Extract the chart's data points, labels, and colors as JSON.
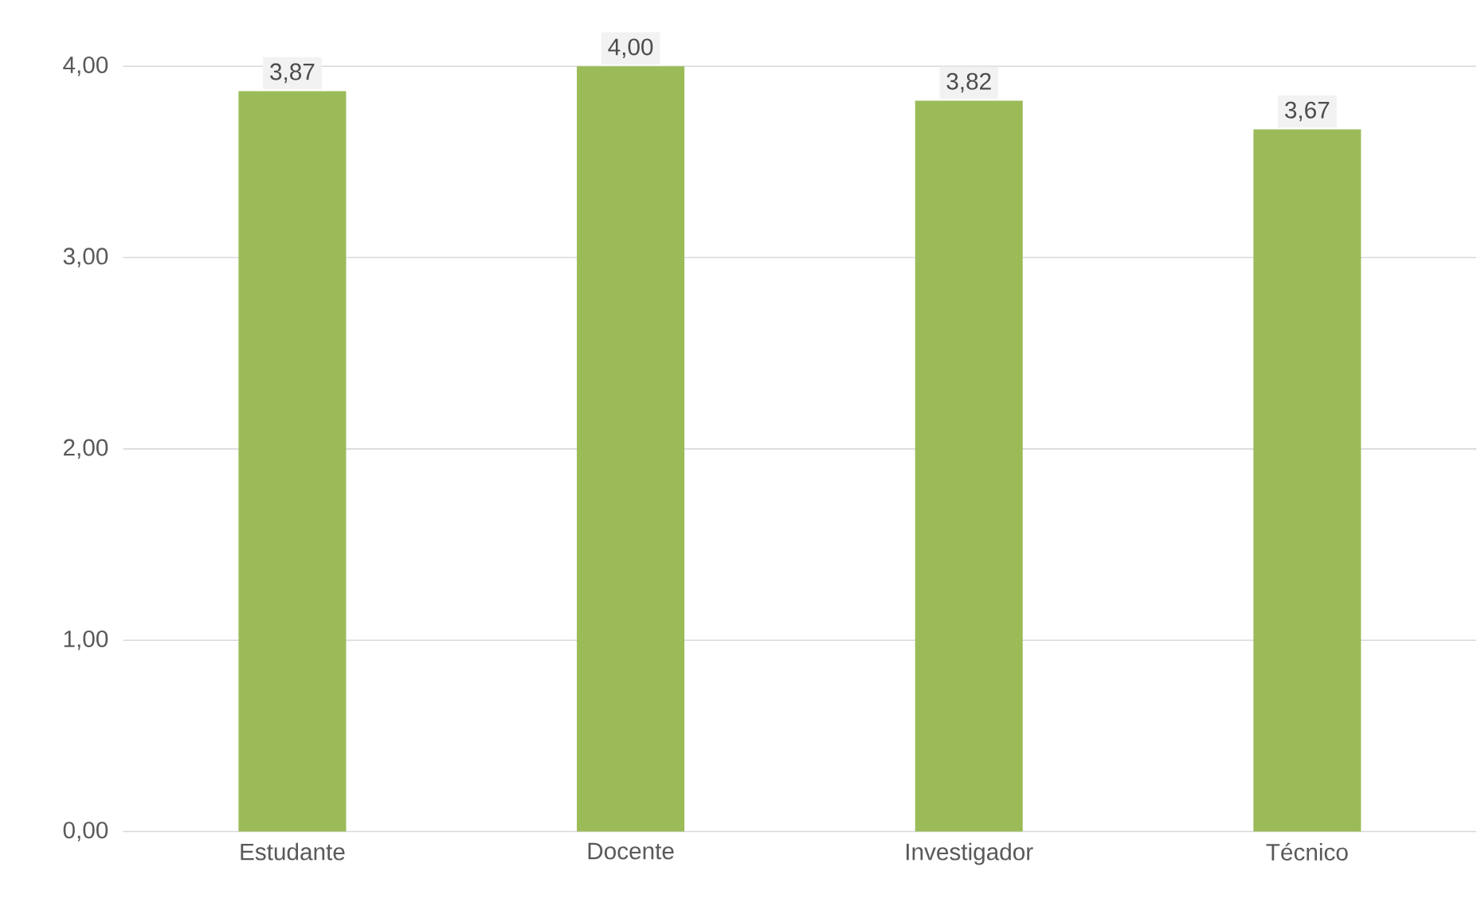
{
  "chart_data": {
    "type": "bar",
    "categories": [
      "Estudante",
      "Docente",
      "Investigador",
      "Técnico"
    ],
    "values": [
      3.87,
      4.0,
      3.82,
      3.67
    ],
    "value_labels": [
      "3,87",
      "4,00",
      "3,82",
      "3,67"
    ],
    "color": "#9bbb59",
    "grid": "y",
    "ylim": [
      0,
      4
    ],
    "yticks": [
      {
        "value": 0,
        "label": "0,00"
      },
      {
        "value": 1,
        "label": "1,00"
      },
      {
        "value": 2,
        "label": "2,00"
      },
      {
        "value": 3,
        "label": "3,00"
      },
      {
        "value": 4,
        "label": "4,00"
      }
    ]
  }
}
